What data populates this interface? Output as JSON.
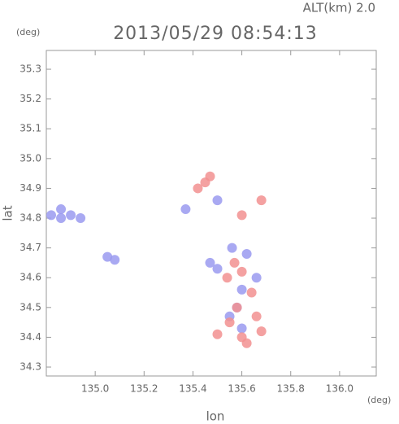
{
  "chart_data": {
    "type": "scatter",
    "title": "2013/05/29 08:54:13",
    "subtitle": "ALT(km) 2.0",
    "x_label": "lon",
    "y_label": "lat",
    "x_unit": "(deg)",
    "y_unit": "(deg)",
    "xlim": [
      134.8,
      136.15
    ],
    "ylim": [
      34.27,
      35.363
    ],
    "xticks": [
      {
        "value": 135,
        "label": "135.0"
      },
      135.2,
      135.4,
      135.6,
      135.8,
      {
        "value": 136,
        "label": "136.0"
      }
    ],
    "yticks": [
      34.3,
      34.4,
      34.5,
      34.6,
      34.7,
      34.8,
      34.9,
      {
        "value": 35,
        "label": "35.0"
      },
      35.1,
      35.2,
      35.3
    ],
    "series": [
      {
        "color": "#9a9af0",
        "x": [
          134.82,
          134.86,
          134.9,
          134.94,
          134.86,
          135.05,
          135.08,
          135.37,
          135.5,
          135.56,
          135.62,
          135.5,
          135.6,
          135.66,
          135.55,
          135.6,
          135.47,
          135.58
        ],
        "y": [
          34.81,
          34.8,
          34.81,
          34.8,
          34.83,
          34.67,
          34.66,
          34.83,
          34.86,
          34.7,
          34.68,
          34.63,
          34.56,
          34.6,
          34.47,
          34.43,
          34.65,
          34.5
        ]
      },
      {
        "color": "#f29090",
        "x": [
          135.42,
          135.45,
          135.47,
          135.6,
          135.68,
          135.57,
          135.6,
          135.54,
          135.64,
          135.58,
          135.66,
          135.55,
          135.68,
          135.62,
          135.6,
          135.5
        ],
        "y": [
          34.9,
          34.92,
          34.94,
          34.81,
          34.86,
          34.65,
          34.62,
          34.6,
          34.55,
          34.5,
          34.47,
          34.45,
          34.42,
          34.38,
          34.4,
          34.41
        ]
      }
    ]
  }
}
